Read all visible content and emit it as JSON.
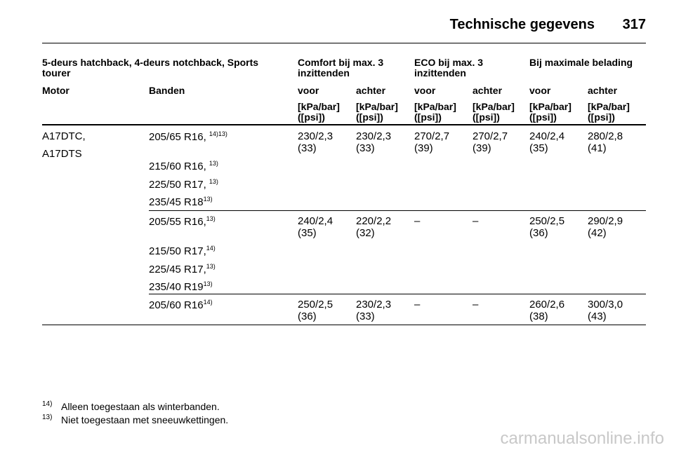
{
  "header": {
    "title": "Technische gegevens",
    "page_number": "317"
  },
  "table": {
    "group_headers": {
      "vehicle": "5-deurs hatchback, 4-deurs notchback, Sports tourer",
      "comfort": "Comfort bij max. 3 inzittenden",
      "eco": "ECO bij max. 3 inzittenden",
      "max_load": "Bij maximale belading"
    },
    "column_headers": {
      "motor": "Motor",
      "tyres": "Banden",
      "front": "voor",
      "rear": "achter"
    },
    "unit": "[kPa/bar] ([psi])",
    "motor_lines": [
      "A17DTC,",
      "A17DTS"
    ],
    "groups": [
      {
        "tyres": [
          {
            "size": "205/65 R16, ",
            "note": "14)13)"
          },
          {
            "size": "215/60 R16, ",
            "note": "13)"
          },
          {
            "size": "225/50 R17, ",
            "note": "13)"
          },
          {
            "size": "235/45 R18",
            "note": "13)"
          }
        ],
        "values": [
          "230/2,3 (33)",
          "230/2,3 (33)",
          "270/2,7 (39)",
          "270/2,7 (39)",
          "240/2,4 (35)",
          "280/2,8 (41)"
        ]
      },
      {
        "tyres": [
          {
            "size": "205/55 R16,",
            "note": "13)"
          },
          {
            "size": "215/50 R17,",
            "note": "14)"
          },
          {
            "size": "225/45 R17,",
            "note": "13)"
          },
          {
            "size": "235/40 R19",
            "note": "13)"
          }
        ],
        "values": [
          "240/2,4 (35)",
          "220/2,2 (32)",
          "–",
          "–",
          "250/2,5 (36)",
          "290/2,9 (42)"
        ]
      },
      {
        "tyres": [
          {
            "size": "205/60 R16",
            "note": "14)"
          }
        ],
        "values": [
          "250/2,5 (36)",
          "230/2,3 (33)",
          "–",
          "–",
          "260/2,6 (38)",
          "300/3,0 (43)"
        ]
      }
    ]
  },
  "footnotes": [
    {
      "number": "14)",
      "text": "Alleen toegestaan als winterbanden."
    },
    {
      "number": "13)",
      "text": "Niet toegestaan met sneeuwkettingen."
    }
  ],
  "watermark": "carmanualsonline.info"
}
